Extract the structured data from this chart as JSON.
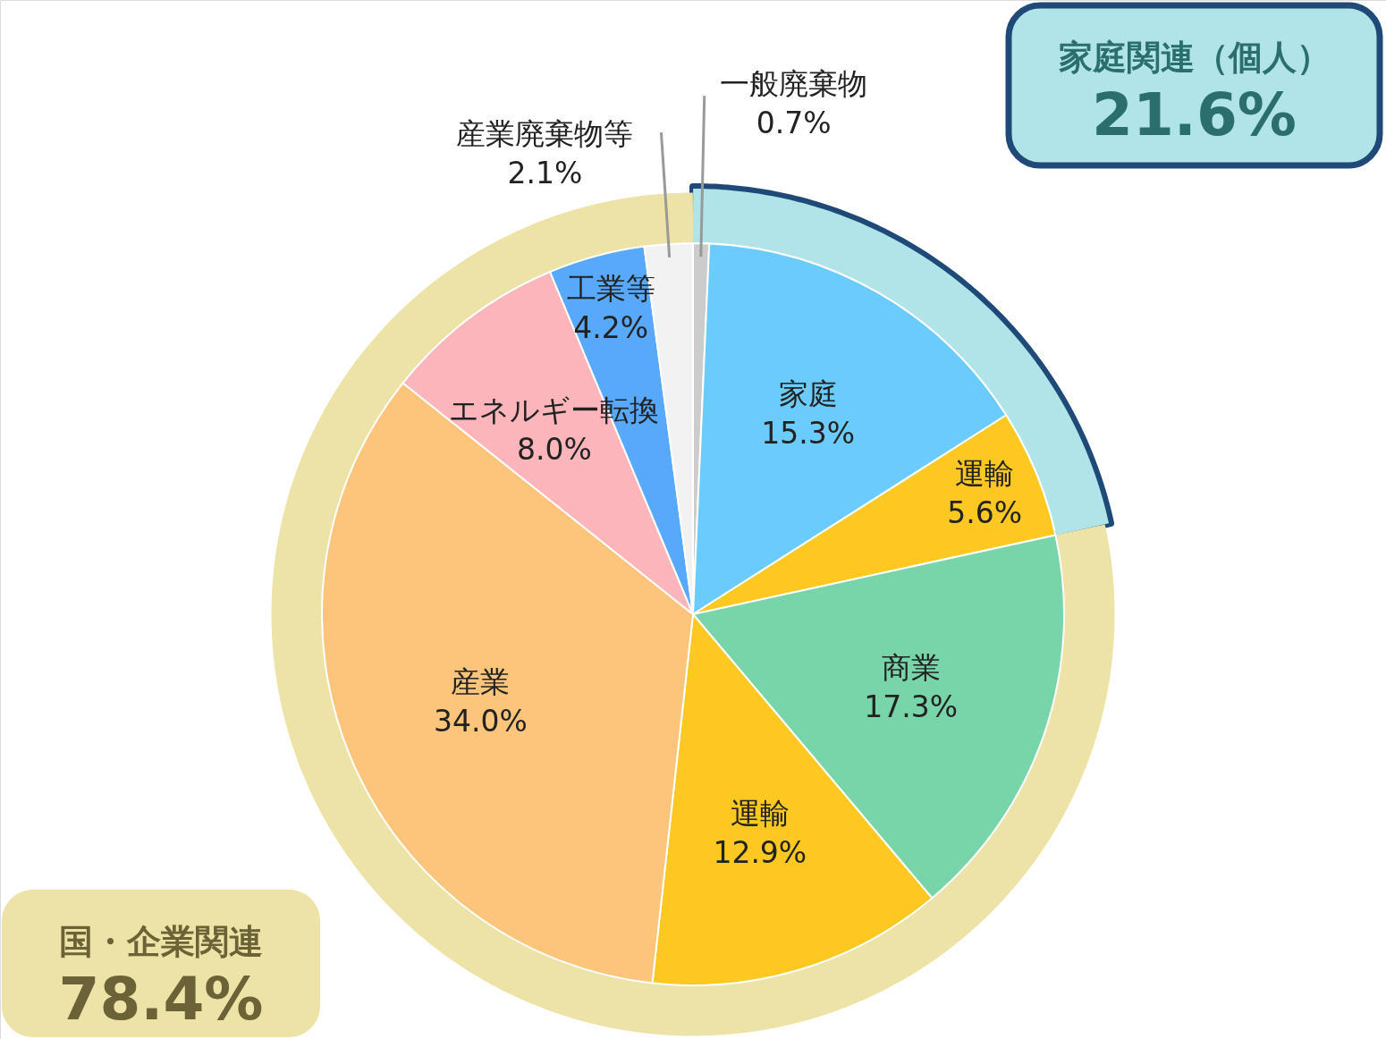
{
  "chart_data": {
    "type": "pie",
    "categories": [
      "一般廃棄物",
      "家庭",
      "運輸",
      "商業",
      "運輸",
      "産業",
      "エネルギー転換",
      "工業等",
      "産業廃棄物等"
    ],
    "values": [
      0.7,
      15.3,
      5.6,
      17.3,
      12.9,
      34.0,
      8.0,
      4.2,
      2.1
    ],
    "colors": [
      "#cccccc",
      "#6ccbfd",
      "#fdc821",
      "#78d5aa",
      "#fdc821",
      "#fdc47c",
      "#fdb5bc",
      "#58a8fc",
      "#f2f2f2"
    ],
    "value_labels": [
      "0.7%",
      "15.3%",
      "5.6%",
      "17.3%",
      "12.9%",
      "34.0%",
      "8.0%",
      "4.2%",
      "2.1%"
    ],
    "annotations": [
      "家庭関連（個人）",
      "21.6%",
      "国・企業関連",
      "78.4%"
    ]
  }
}
